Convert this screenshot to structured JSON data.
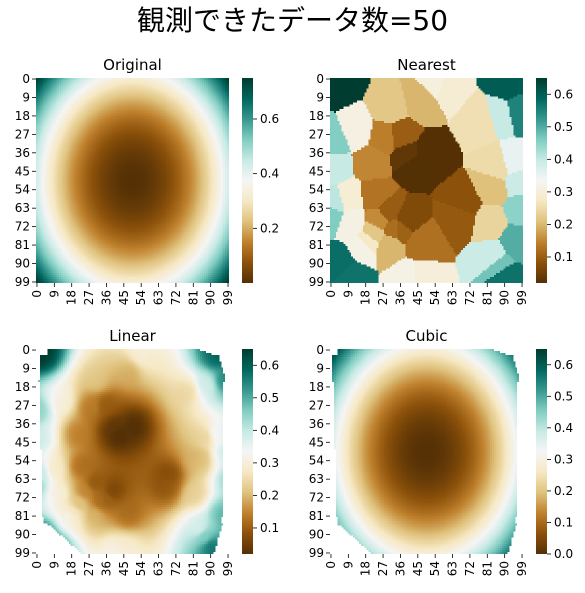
{
  "figure": {
    "suptitle": "観測できたデータ数=50"
  },
  "chart_data": [
    {
      "type": "heatmap",
      "title": "Original",
      "grid_size": [
        100,
        100
      ],
      "field": "smooth radial bowl: minimum at center (~0.0), rising toward edges and corners (~0.75)",
      "xticks": [
        "0",
        "9",
        "18",
        "27",
        "36",
        "45",
        "54",
        "63",
        "72",
        "81",
        "90",
        "99"
      ],
      "yticks": [
        "0",
        "9",
        "18",
        "27",
        "36",
        "45",
        "54",
        "63",
        "72",
        "81",
        "90",
        "99"
      ],
      "colorbar_ticks": [
        0.2,
        0.4,
        0.6
      ],
      "vmin": 0.0,
      "vmax": 0.75,
      "colormap": "BrBG"
    },
    {
      "type": "heatmap",
      "title": "Nearest",
      "grid_size": [
        100,
        100
      ],
      "field": "nearest-neighbour interpolation of 50 observed points (piecewise constant cells)",
      "xticks": [
        "0",
        "9",
        "18",
        "27",
        "36",
        "45",
        "54",
        "63",
        "72",
        "81",
        "90",
        "99"
      ],
      "yticks": [
        "0",
        "9",
        "18",
        "27",
        "36",
        "45",
        "54",
        "63",
        "72",
        "81",
        "90",
        "99"
      ],
      "colorbar_ticks": [
        0.1,
        0.2,
        0.3,
        0.4,
        0.5,
        0.6
      ],
      "vmin": 0.02,
      "vmax": 0.65,
      "colormap": "BrBG"
    },
    {
      "type": "heatmap",
      "title": "Linear",
      "grid_size": [
        100,
        100
      ],
      "field": "linear interpolation inside convex hull of observed points; blank (NaN) outside",
      "xticks": [
        "0",
        "9",
        "18",
        "27",
        "36",
        "45",
        "54",
        "63",
        "72",
        "81",
        "90",
        "99"
      ],
      "yticks": [
        "0",
        "9",
        "18",
        "27",
        "36",
        "45",
        "54",
        "63",
        "72",
        "81",
        "90",
        "99"
      ],
      "colorbar_ticks": [
        0.1,
        0.2,
        0.3,
        0.4,
        0.5,
        0.6
      ],
      "vmin": 0.02,
      "vmax": 0.65,
      "colormap": "BrBG"
    },
    {
      "type": "heatmap",
      "title": "Cubic",
      "grid_size": [
        100,
        100
      ],
      "field": "cubic interpolation inside convex hull of observed points; blank (NaN) outside",
      "xticks": [
        "0",
        "9",
        "18",
        "27",
        "36",
        "45",
        "54",
        "63",
        "72",
        "81",
        "90",
        "99"
      ],
      "yticks": [
        "0",
        "9",
        "18",
        "27",
        "36",
        "45",
        "54",
        "63",
        "72",
        "81",
        "90",
        "99"
      ],
      "colorbar_ticks": [
        0.0,
        0.1,
        0.2,
        0.3,
        0.4,
        0.5,
        0.6
      ],
      "vmin": 0.0,
      "vmax": 0.65,
      "colormap": "BrBG"
    }
  ]
}
